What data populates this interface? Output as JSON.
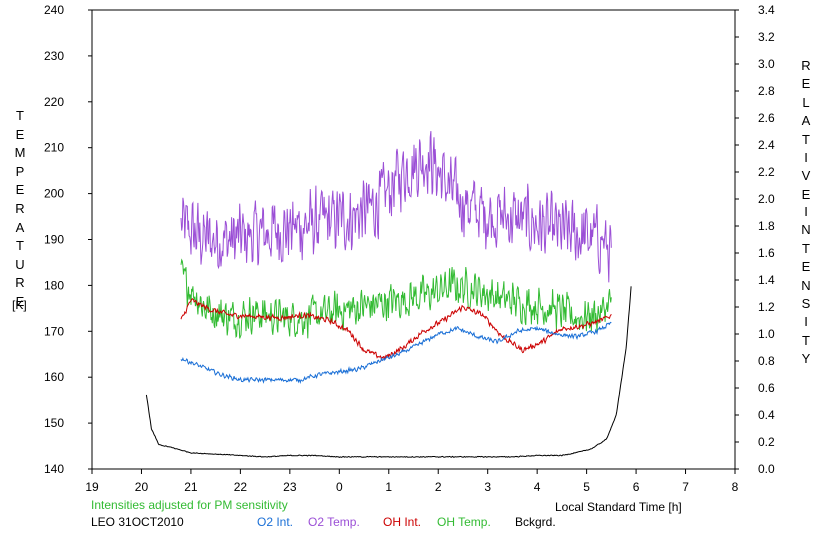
{
  "chart_data": {
    "type": "line",
    "left_axis_label_letters": [
      "T",
      "E",
      "M",
      "P",
      "E",
      "R",
      "A",
      "T",
      "U",
      "R",
      "E"
    ],
    "left_axis_unit": "[K]",
    "right_axis_label_word1": [
      "R",
      "E",
      "L",
      "A",
      "T",
      "I",
      "V",
      "E"
    ],
    "right_axis_label_word2": [
      "I",
      "N",
      "T",
      "E",
      "N",
      "S",
      "I",
      "T",
      "Y"
    ],
    "xlabel": "Local Standard Time [h]",
    "x_ticks": [
      "19",
      "20",
      "21",
      "22",
      "23",
      "0",
      "1",
      "2",
      "3",
      "4",
      "5",
      "6",
      "7",
      "8"
    ],
    "x_range": [
      19,
      32
    ],
    "y_left_ticks": [
      "140",
      "150",
      "160",
      "170",
      "180",
      "190",
      "200",
      "210",
      "220",
      "230",
      "240"
    ],
    "y_left_range": [
      140,
      240
    ],
    "y_right_ticks": [
      "0.0",
      "0.2",
      "0.4",
      "0.6",
      "0.8",
      "1.0",
      "1.2",
      "1.4",
      "1.6",
      "1.8",
      "2.0",
      "2.2",
      "2.4",
      "2.6",
      "2.8",
      "3.0",
      "3.2",
      "3.4"
    ],
    "y_right_range": [
      0,
      3.4
    ],
    "note": "Intensities adjusted for PM sensitivity",
    "station_label": "LEO 31OCT2010",
    "legend": [
      {
        "name": "O2 Int.",
        "color": "#1a6fd6"
      },
      {
        "name": "O2 Temp.",
        "color": "#9b4fd6"
      },
      {
        "name": "OH Int.",
        "color": "#cc0000"
      },
      {
        "name": "OH Temp.",
        "color": "#33bb33"
      },
      {
        "name": "Bckgrd.",
        "color": "#000000"
      }
    ],
    "series": [
      {
        "name": "O2 Temp.",
        "axis": "left",
        "color": "#9b4fd6",
        "noise": 9,
        "x": [
          20.8,
          21.3,
          21.8,
          22.3,
          22.8,
          23.3,
          23.8,
          24.3,
          24.8,
          25.3,
          25.8,
          26.3,
          26.8,
          27.3,
          27.8,
          28.3,
          28.8,
          29.3,
          29.5
        ],
        "y": [
          193,
          190,
          190,
          191,
          192,
          193,
          194,
          195,
          198,
          205,
          208,
          200,
          196,
          195,
          194,
          192,
          191,
          190,
          187
        ]
      },
      {
        "name": "OH Temp.",
        "axis": "left",
        "color": "#33bb33",
        "noise": 5,
        "x": [
          20.8,
          21.3,
          21.8,
          22.3,
          22.8,
          23.3,
          23.8,
          24.3,
          24.8,
          25.3,
          25.8,
          26.3,
          26.8,
          27.3,
          27.8,
          28.3,
          28.8,
          29.3,
          29.5
        ],
        "y": [
          182,
          175,
          173,
          174,
          173,
          173,
          174,
          175,
          176,
          177,
          178,
          180,
          179,
          177,
          176,
          175,
          173,
          174,
          177
        ]
      },
      {
        "name": "OH Int.",
        "axis": "right",
        "color": "#cc0000",
        "noise": 0.025,
        "x": [
          20.8,
          21.0,
          21.4,
          21.8,
          22.3,
          22.8,
          23.3,
          23.8,
          24.2,
          24.5,
          24.9,
          25.3,
          25.7,
          26.1,
          26.5,
          26.9,
          27.3,
          27.7,
          28.1,
          28.5,
          28.9,
          29.3,
          29.5
        ],
        "y": [
          1.1,
          1.25,
          1.18,
          1.14,
          1.13,
          1.12,
          1.14,
          1.1,
          1.02,
          0.88,
          0.82,
          0.9,
          1.02,
          1.1,
          1.2,
          1.14,
          0.98,
          0.88,
          0.94,
          1.04,
          1.06,
          1.1,
          1.14
        ]
      },
      {
        "name": "O2 Int.",
        "axis": "right",
        "color": "#1a6fd6",
        "noise": 0.02,
        "x": [
          20.8,
          21.2,
          21.6,
          22.0,
          22.4,
          22.8,
          23.2,
          23.6,
          24.0,
          24.4,
          24.8,
          25.2,
          25.6,
          26.0,
          26.4,
          26.8,
          27.2,
          27.6,
          28.0,
          28.4,
          28.8,
          29.2,
          29.5
        ],
        "y": [
          0.82,
          0.76,
          0.7,
          0.66,
          0.66,
          0.66,
          0.66,
          0.7,
          0.72,
          0.74,
          0.8,
          0.85,
          0.92,
          1.0,
          1.04,
          0.98,
          0.94,
          1.02,
          1.04,
          1.0,
          0.98,
          1.02,
          1.08
        ]
      },
      {
        "name": "Bckgrd.",
        "axis": "right",
        "color": "#000000",
        "noise": 0.004,
        "x": [
          20.1,
          20.2,
          20.35,
          20.6,
          21.0,
          21.5,
          22.0,
          22.5,
          23.0,
          23.5,
          24.0,
          24.5,
          25.0,
          25.5,
          26.0,
          26.5,
          27.0,
          27.5,
          28.0,
          28.5,
          28.9,
          29.1,
          29.4,
          29.6,
          29.8,
          29.9
        ],
        "y": [
          0.55,
          0.3,
          0.18,
          0.16,
          0.12,
          0.11,
          0.1,
          0.09,
          0.1,
          0.1,
          0.09,
          0.09,
          0.09,
          0.09,
          0.09,
          0.09,
          0.09,
          0.09,
          0.1,
          0.1,
          0.13,
          0.15,
          0.22,
          0.4,
          0.9,
          1.35
        ]
      }
    ]
  }
}
